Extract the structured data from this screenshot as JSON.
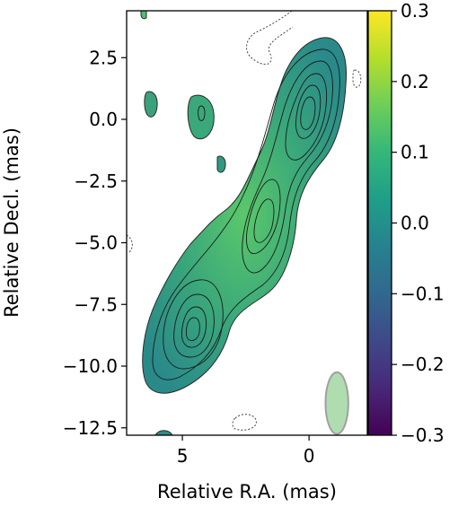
{
  "chart_data": {
    "type": "heatmap",
    "title": "",
    "xlabel": "Relative R.A. (mas)",
    "ylabel": "Relative Decl. (mas)",
    "xlim": [
      7.2,
      -2.3
    ],
    "ylim": [
      -12.8,
      4.4
    ],
    "x_ticks": [
      5,
      0
    ],
    "y_ticks": [
      2.5,
      0.0,
      -2.5,
      -5.0,
      -7.5,
      -10.0,
      -12.5
    ],
    "x_tick_labels": [
      "5",
      "0"
    ],
    "y_tick_labels": [
      "2.5",
      "0.0",
      "−2.5",
      "−5.0",
      "−7.5",
      "−10.0",
      "−12.5"
    ],
    "grid": false,
    "colorbar": {
      "colormap": "viridis",
      "range": [
        -0.3,
        0.3
      ],
      "ticks": [
        0.3,
        0.2,
        0.1,
        0.0,
        -0.1,
        -0.2,
        -0.3
      ],
      "tick_labels": [
        "0.3",
        "0.2",
        "0.1",
        "0.0",
        "−0.1",
        "−0.2",
        "−0.3"
      ],
      "colors": [
        "#440154",
        "#482878",
        "#3e4989",
        "#31688e",
        "#26828e",
        "#1f9e89",
        "#35b779",
        "#6ece58",
        "#b5de2b",
        "#fde725"
      ]
    },
    "jet": {
      "core_position": [
        0.0,
        0.0
      ],
      "knot_positions": [
        [
          2.2,
          -4.4
        ],
        [
          4.8,
          -8.3
        ]
      ],
      "map_value_typical": 0.05
    },
    "beam": {
      "center": [
        -1.1,
        -11.5
      ],
      "major": 2.5,
      "minor": 0.9,
      "color": "#9bd49b"
    }
  }
}
